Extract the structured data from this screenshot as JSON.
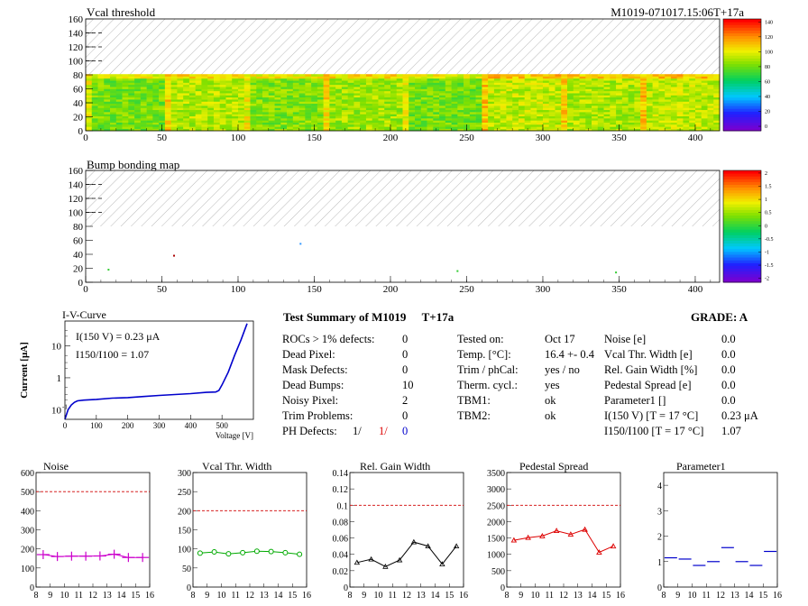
{
  "header": {
    "vcal_title": "Vcal threshold",
    "module_id": "M1019-071017.15:06T+17a",
    "bump_title": "Bump bonding map"
  },
  "colors": {
    "grid_dash": "#000000",
    "red_ref": "#d00000",
    "magenta": "#cc00cc",
    "green": "#00aa00",
    "black": "#000000",
    "red": "#dd0000",
    "blue": "#0000cc"
  },
  "summary": {
    "title": "Test Summary of M1019",
    "tag": "T+17a",
    "grade_label": "GRADE:  A",
    "col1": [
      {
        "label": "ROCs > 1% defects:",
        "value": "0"
      },
      {
        "label": "Dead Pixel:",
        "value": "0"
      },
      {
        "label": "Mask Defects:",
        "value": "0"
      },
      {
        "label": "Dead Bumps:",
        "value": "10"
      },
      {
        "label": "Noisy Pixel:",
        "value": "2"
      },
      {
        "label": "Trim Problems:",
        "value": "0"
      }
    ],
    "ph_label": "PH Defects:",
    "ph_values": [
      "1/",
      "1/",
      "0"
    ],
    "col2": [
      {
        "label": "Tested on:",
        "value": "Oct 17"
      },
      {
        "label": "Temp. [°C]:",
        "value": "16.4 +- 0.4"
      },
      {
        "label": "Trim / phCal:",
        "value": "yes / no"
      },
      {
        "label": "Therm. cycl.:",
        "value": "yes"
      },
      {
        "label": "TBM1:",
        "value": "ok"
      },
      {
        "label": "TBM2:",
        "value": "ok"
      }
    ],
    "col3": [
      {
        "label": "Noise [e]",
        "value": "0.0"
      },
      {
        "label": "Vcal Thr. Width [e]",
        "value": "0.0"
      },
      {
        "label": "Rel. Gain Width [%]",
        "value": "0.0"
      },
      {
        "label": "Pedestal Spread [e]",
        "value": "0.0"
      },
      {
        "label": "Parameter1 []",
        "value": "0.0"
      },
      {
        "label": "I(150 V) [T = 17 °C]",
        "value": "0.23 μA"
      },
      {
        "label": "I150/I100  [T = 17 °C]",
        "value": "1.07"
      }
    ]
  },
  "chart_data": [
    {
      "type": "heatmap",
      "title": "Vcal threshold",
      "xlim": [
        0,
        416
      ],
      "ylim": [
        0,
        160
      ],
      "x_ticks": [
        0,
        50,
        100,
        150,
        200,
        250,
        300,
        350,
        400
      ],
      "y_ticks": [
        0,
        20,
        40,
        60,
        80,
        100,
        120,
        140,
        160
      ],
      "filled_rows": [
        0,
        80
      ],
      "hatched_rows": [
        80,
        160
      ],
      "colorbar_range": [
        0,
        150
      ],
      "colorbar_ticks": [
        "0",
        "20",
        "40",
        "60",
        "80",
        "100",
        "120",
        "140"
      ],
      "roc_mean_z": [
        88,
        98,
        90,
        95,
        88,
        100,
        97,
        100
      ]
    },
    {
      "type": "heatmap",
      "title": "Bump bonding map",
      "xlim": [
        0,
        416
      ],
      "ylim": [
        0,
        160
      ],
      "x_ticks": [
        0,
        50,
        100,
        150,
        200,
        250,
        300,
        350,
        400
      ],
      "y_ticks": [
        0,
        20,
        40,
        60,
        80,
        100,
        120,
        140,
        160
      ],
      "hatched_rows": [
        80,
        160
      ],
      "colorbar_range": [
        -2,
        2
      ],
      "colorbar_ticks": [
        "-2",
        "-1.5",
        "-1",
        "-0.5",
        "0",
        "0.5",
        "1",
        "1.5",
        "2"
      ],
      "points": [
        {
          "x": 15,
          "y": 18,
          "c": "#33cc33"
        },
        {
          "x": 58,
          "y": 38,
          "c": "#aa0000"
        },
        {
          "x": 141,
          "y": 55,
          "c": "#3399ff"
        },
        {
          "x": 244,
          "y": 16,
          "c": "#33cc33"
        },
        {
          "x": 348,
          "y": 14,
          "c": "#33cc33"
        }
      ]
    },
    {
      "type": "line",
      "title": "I-V-Curve",
      "xlabel": "Voltage [V]",
      "ylabel": "Current [μA]",
      "xlim": [
        0,
        600
      ],
      "ylim": [
        0.05,
        60
      ],
      "log_y": true,
      "x_ticks": [
        "0",
        "100",
        "200",
        "300",
        "400",
        "500"
      ],
      "y_ticks": [
        "10",
        "1"
      ],
      "annotation_1": "I(150 V) = 0.23 μA",
      "annotation_2": "I150/I100 =  1.07",
      "x": [
        0,
        5,
        10,
        20,
        30,
        40,
        60,
        100,
        150,
        200,
        250,
        300,
        350,
        400,
        450,
        480,
        490,
        500,
        520,
        540,
        560,
        580
      ],
      "values": [
        0.05,
        0.07,
        0.1,
        0.14,
        0.17,
        0.19,
        0.2,
        0.21,
        0.23,
        0.24,
        0.26,
        0.28,
        0.3,
        0.32,
        0.35,
        0.36,
        0.4,
        0.6,
        1.5,
        5,
        15,
        50
      ]
    },
    {
      "type": "line",
      "title": "Noise",
      "xlim": [
        8,
        16
      ],
      "ylim": [
        0,
        600
      ],
      "x_ticks": [
        "8",
        "9",
        "10",
        "11",
        "12",
        "13",
        "14",
        "15",
        "16"
      ],
      "y_ticks": [
        "0",
        "100",
        "200",
        "300",
        "400",
        "500",
        "600"
      ],
      "ref_line": 500,
      "x": [
        8.5,
        9.5,
        10.5,
        11.5,
        12.5,
        13.5,
        14.5,
        15.5
      ],
      "values": [
        170,
        160,
        162,
        162,
        163,
        172,
        155,
        155
      ]
    },
    {
      "type": "line",
      "title": "Vcal Thr. Width",
      "xlim": [
        8,
        16
      ],
      "ylim": [
        0,
        300
      ],
      "x_ticks": [
        "8",
        "9",
        "10",
        "11",
        "12",
        "13",
        "14",
        "15",
        "16"
      ],
      "y_ticks": [
        "0",
        "50",
        "100",
        "150",
        "200",
        "250",
        "300"
      ],
      "ref_line": 200,
      "x": [
        8.5,
        9.5,
        10.5,
        11.5,
        12.5,
        13.5,
        14.5,
        15.5
      ],
      "values": [
        89,
        92,
        87,
        90,
        94,
        93,
        90,
        86
      ]
    },
    {
      "type": "line",
      "title": "Rel. Gain Width",
      "xlim": [
        8,
        16
      ],
      "ylim": [
        0,
        0.14
      ],
      "x_ticks": [
        "8",
        "9",
        "10",
        "11",
        "12",
        "13",
        "14",
        "15",
        "16"
      ],
      "y_ticks": [
        "0",
        "0.02",
        "0.04",
        "0.06",
        "0.08",
        "0.1",
        "0.12",
        "0.14"
      ],
      "ref_line": 0.1,
      "x": [
        8.5,
        9.5,
        10.5,
        11.5,
        12.5,
        13.5,
        14.5,
        15.5
      ],
      "values": [
        0.03,
        0.034,
        0.025,
        0.033,
        0.055,
        0.05,
        0.028,
        0.05
      ]
    },
    {
      "type": "line",
      "title": "Pedestal Spread",
      "xlim": [
        8,
        16
      ],
      "ylim": [
        0,
        3500
      ],
      "x_ticks": [
        "8",
        "9",
        "10",
        "11",
        "12",
        "13",
        "14",
        "15",
        "16"
      ],
      "y_ticks": [
        "0",
        "500",
        "1000",
        "1500",
        "2000",
        "2500",
        "3000",
        "3500"
      ],
      "ref_line": 2500,
      "x": [
        8.5,
        9.5,
        10.5,
        11.5,
        12.5,
        13.5,
        14.5,
        15.5
      ],
      "values": [
        1430,
        1510,
        1560,
        1720,
        1610,
        1760,
        1060,
        1250
      ]
    },
    {
      "type": "scatter",
      "title": "Parameter1",
      "xlim": [
        8,
        16
      ],
      "ylim": [
        0,
        4.5
      ],
      "x_ticks": [
        "8",
        "9",
        "10",
        "11",
        "12",
        "13",
        "14",
        "15",
        "16"
      ],
      "y_ticks": [
        "0",
        "1",
        "2",
        "3",
        "4"
      ],
      "x": [
        8.5,
        9.5,
        10.5,
        11.5,
        12.5,
        13.5,
        14.5,
        15.5
      ],
      "values": [
        1.15,
        1.1,
        0.85,
        1.0,
        1.55,
        1.0,
        0.85,
        1.4
      ]
    }
  ]
}
